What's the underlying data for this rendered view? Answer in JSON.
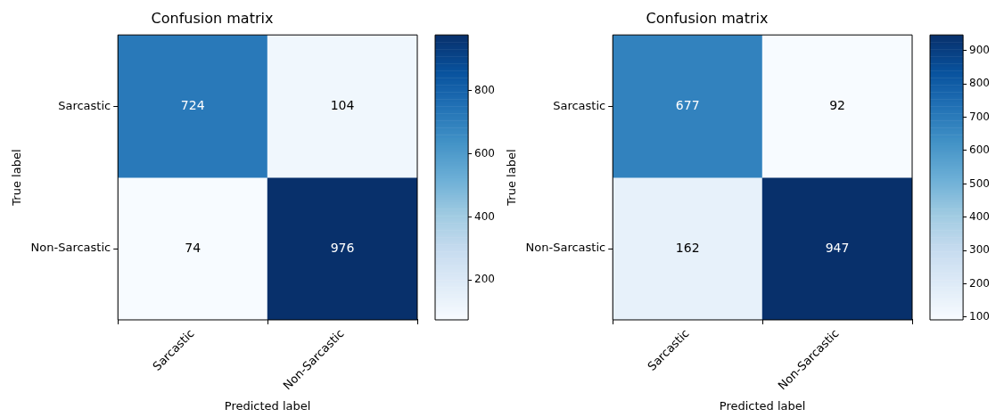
{
  "chart_data": [
    {
      "type": "heatmap",
      "title": "Confusion matrix",
      "xlabel": "Predicted label",
      "ylabel": "True label",
      "categories": [
        "Sarcastic",
        "Non-Sarcastic"
      ],
      "y_categories": [
        "Sarcastic",
        "Non-Sarcastic"
      ],
      "cells": [
        [
          724,
          104
        ],
        [
          74,
          976
        ]
      ],
      "clim": [
        74,
        976
      ],
      "cticks": [
        200,
        400,
        600,
        800
      ],
      "data_labels": true
    },
    {
      "type": "heatmap",
      "title": "Confusion matrix",
      "xlabel": "Predicted label",
      "ylabel": "True label",
      "categories": [
        "Sarcastic",
        "Non-Sarcastic"
      ],
      "y_categories": [
        "Sarcastic",
        "Non-Sarcastic"
      ],
      "cells": [
        [
          677,
          92
        ],
        [
          162,
          947
        ]
      ],
      "clim": [
        92,
        947
      ],
      "cticks": [
        100,
        200,
        300,
        400,
        500,
        600,
        700,
        800,
        900
      ],
      "data_labels": true
    }
  ]
}
